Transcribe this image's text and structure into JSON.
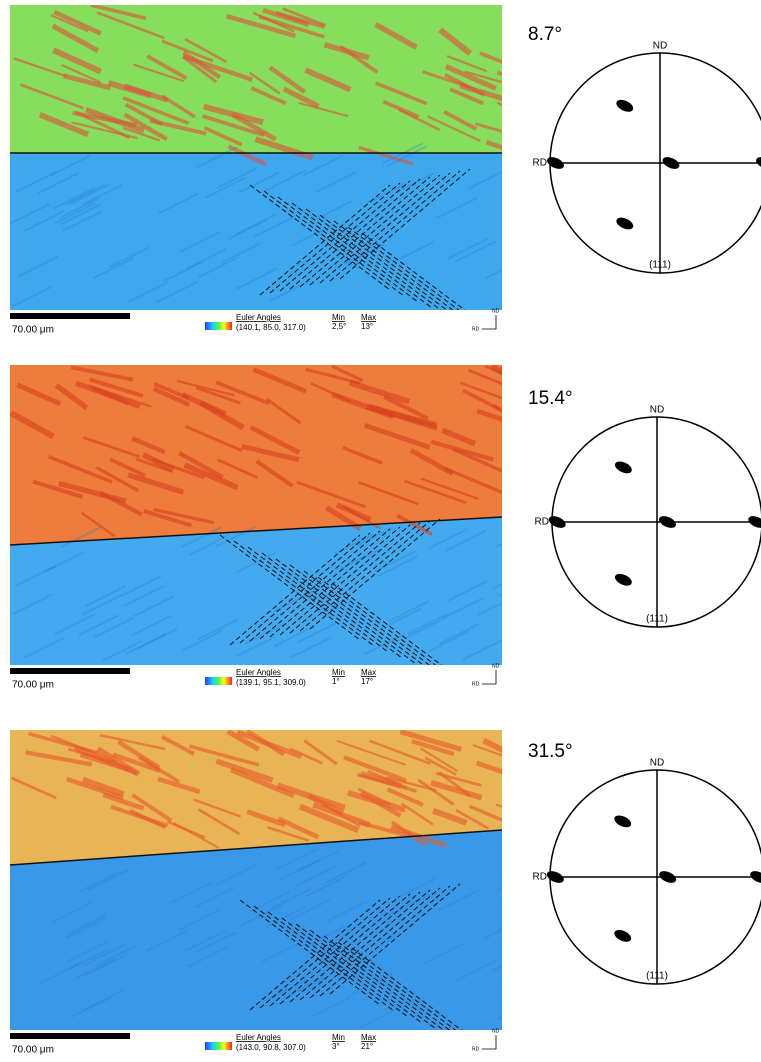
{
  "panels": [
    {
      "angle": "8.7°",
      "scale_bar": "70.00 μm",
      "legend_title": "Euler Angles",
      "euler": "(140.1, 85.0, 317.0)",
      "min_label": "Min",
      "max_label": "Max",
      "min": "2.5°",
      "max": "13°",
      "pole": {
        "top": "ND",
        "left": "RD",
        "bottom": "(111)"
      },
      "axes": {
        "nd": "ND",
        "rd": "RD"
      }
    },
    {
      "angle": "15.4°",
      "scale_bar": "70.00 μm",
      "legend_title": "Euler Angles",
      "euler": "(139.1, 95.1, 309.0)",
      "min_label": "Min",
      "max_label": "Max",
      "min": "1°",
      "max": "17°",
      "pole": {
        "top": "ND",
        "left": "RD",
        "bottom": "(111)"
      },
      "axes": {
        "nd": "ND",
        "rd": "RD"
      }
    },
    {
      "angle": "31.5°",
      "scale_bar": "70.00 μm",
      "legend_title": "Euler Angles",
      "euler": "(143.0, 90.8, 307.0)",
      "min_label": "Min",
      "max_label": "Max",
      "min": "3°",
      "max": "21°",
      "pole": {
        "top": "ND",
        "left": "RD",
        "bottom": "(111)"
      },
      "axes": {
        "nd": "ND",
        "rd": "RD"
      }
    }
  ]
}
